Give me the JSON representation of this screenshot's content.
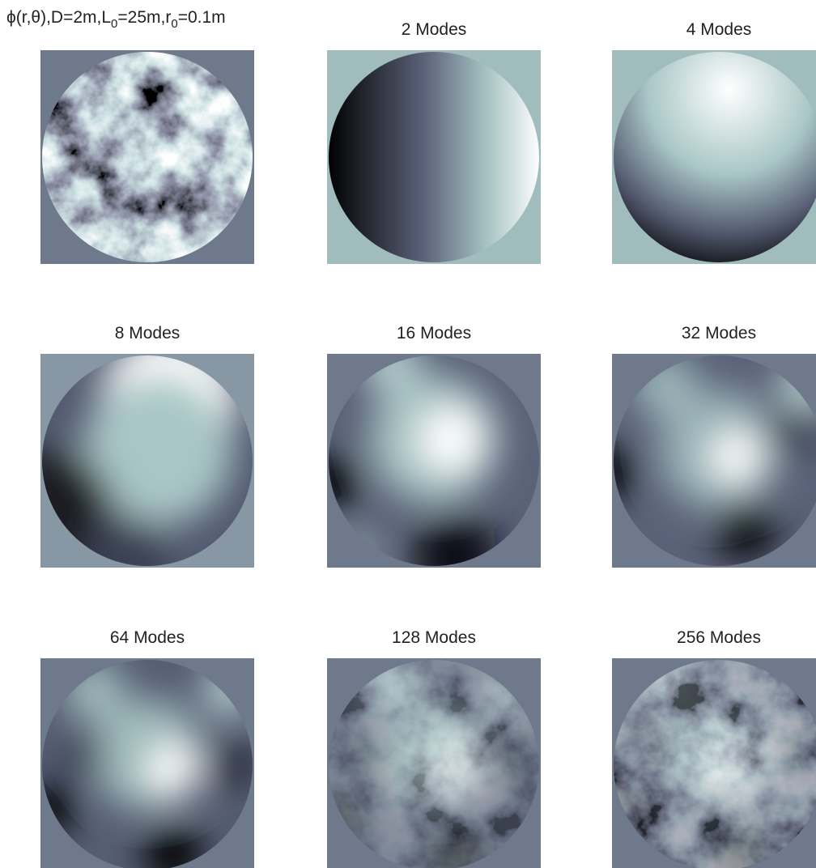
{
  "panels": [
    {
      "title_parts": [
        "ϕ(r,θ),D=2m,L",
        "0",
        "=25m,r",
        "0",
        "=0.1m"
      ]
    },
    {
      "title": "2 Modes"
    },
    {
      "title": "4 Modes"
    },
    {
      "title": "8 Modes"
    },
    {
      "title": "16 Modes"
    },
    {
      "title": "32 Modes"
    },
    {
      "title": "64 Modes"
    },
    {
      "title": "128 Modes"
    },
    {
      "title": "256 Modes"
    }
  ]
}
